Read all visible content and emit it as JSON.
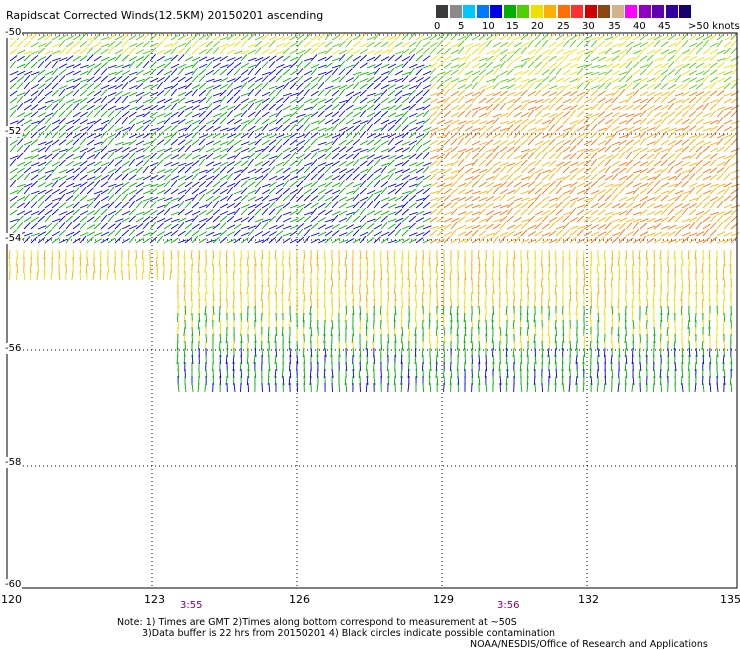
{
  "title": "Rapidscat Corrected Winds(12.5KM) 20150201 ascending",
  "legend": {
    "colors": [
      "#3b3b3b",
      "#8a8a8a",
      "#00c8ff",
      "#0078ff",
      "#0000e0",
      "#00b000",
      "#50d000",
      "#f0e000",
      "#ffb000",
      "#ff7000",
      "#ff3030",
      "#d00000",
      "#8b4513",
      "#d2b48c",
      "#ff00ff",
      "#9000c0",
      "#6000b0",
      "#3000a0",
      "#18006e"
    ],
    "labels": [
      "0",
      "5",
      "10",
      "15",
      "20",
      "25",
      "30",
      "35",
      "40",
      "45",
      ">50 knots"
    ]
  },
  "map": {
    "lat_labels": [
      "-50",
      "-52",
      "-54",
      "-56",
      "-58",
      "-60"
    ],
    "lon_labels": [
      "120",
      "123",
      "126",
      "129",
      "132",
      "135"
    ],
    "times": [
      "3:55",
      "3:56"
    ]
  },
  "notes": {
    "line1": "Note: 1) Times are GMT 2)Times along bottom correspond to measurement at ~50S",
    "line2": "3)Data buffer is 22 hrs from 20150201 4) Black circles indicate possible contamination",
    "credit": "NOAA/NESDIS/Office of Research and Applications"
  }
}
